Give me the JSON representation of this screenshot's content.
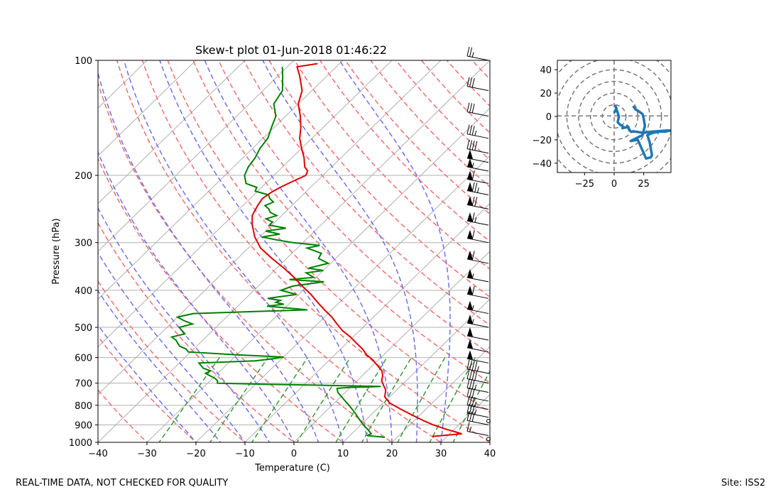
{
  "footer": {
    "left": "REAL-TIME DATA, NOT CHECKED FOR QUALITY",
    "right": "Site: ISS2"
  },
  "colors": {
    "temperature": "#e00000",
    "dewpoint": "#008000",
    "dry_adiabat": "#f07070",
    "moist_adiabat": "#7070f0",
    "mixing_ratio": "#3a9a3a",
    "isotherm": "#b0b0b0",
    "hodograph": "#1f77b4"
  },
  "chart_data": [
    {
      "type": "skewt",
      "title": "Skew-t plot 01-Jun-2018 01:46:22",
      "xlabel": "Temperature (C)",
      "ylabel": "Pressure (hPa)",
      "xlim": [
        -40,
        40
      ],
      "ylim": [
        1000,
        100
      ],
      "x_ticks": [
        -40,
        -30,
        -20,
        -10,
        0,
        10,
        20,
        30,
        40
      ],
      "x_tick_labels": [
        "−40",
        "−30",
        "−20",
        "−10",
        "0",
        "10",
        "20",
        "30",
        "40"
      ],
      "y_ticks": [
        100,
        200,
        300,
        400,
        500,
        600,
        700,
        800,
        900,
        1000
      ],
      "y_tick_labels": [
        "100",
        "200",
        "300",
        "400",
        "500",
        "600",
        "700",
        "800",
        "900",
        "1000"
      ],
      "series": [
        {
          "name": "temperature",
          "p": [
            965,
            950,
            925,
            900,
            880,
            850,
            820,
            790,
            760,
            730,
            710,
            690,
            670,
            650,
            630,
            610,
            590,
            570,
            550,
            530,
            510,
            490,
            470,
            450,
            430,
            410,
            390,
            370,
            350,
            330,
            310,
            290,
            270,
            255,
            240,
            230,
            222,
            215,
            208,
            200,
            195,
            190,
            185,
            180,
            170,
            160,
            150,
            140,
            130,
            120,
            110,
            104,
            102
          ],
          "t": [
            27,
            32.5,
            28.5,
            24.8,
            22.2,
            18.6,
            15.0,
            11.4,
            9.0,
            7.8,
            6.4,
            5.0,
            4.2,
            3.0,
            1.0,
            -1.0,
            -3.5,
            -5.5,
            -8.0,
            -10.5,
            -13.5,
            -16.0,
            -18.5,
            -21.5,
            -24.5,
            -27.5,
            -31.0,
            -34.5,
            -38.5,
            -43.0,
            -47.5,
            -51.0,
            -54.0,
            -56.0,
            -57.0,
            -57.5,
            -57.0,
            -56.2,
            -55.0,
            -53.5,
            -54.0,
            -55.5,
            -56.5,
            -57.5,
            -60.0,
            -62.5,
            -64.5,
            -67.0,
            -70.0,
            -72.0,
            -75.5,
            -78.0,
            -74.5
          ]
        },
        {
          "name": "dewpoint",
          "p": [
            970,
            960,
            950,
            920,
            900,
            870,
            840,
            800,
            770,
            740,
            722,
            718,
            716,
            714,
            712,
            708,
            705,
            700,
            690,
            680,
            670,
            660,
            650,
            640,
            630,
            620,
            612,
            605,
            598,
            590,
            580,
            570,
            560,
            550,
            540,
            530,
            520,
            500,
            490,
            480,
            470,
            460,
            450,
            440,
            435,
            430,
            425,
            420,
            415,
            410,
            400,
            390,
            380,
            375,
            370,
            360,
            355,
            350,
            340,
            330,
            320,
            310,
            305,
            300,
            295,
            290,
            285,
            280,
            275,
            270,
            265,
            260,
            255,
            250,
            245,
            240,
            235,
            230,
            225,
            220,
            215,
            210,
            200,
            190,
            180,
            170,
            160,
            150,
            140,
            130,
            120,
            110,
            104
          ],
          "t": [
            17.5,
            13.5,
            14.0,
            12.0,
            10.5,
            8.5,
            6.5,
            3.5,
            1.0,
            -1.5,
            -2.5,
            0.0,
            4.0,
            6.0,
            1.0,
            -9.0,
            -18.0,
            -28.0,
            -28.5,
            -29.5,
            -31.0,
            -32.5,
            -32.0,
            -34.0,
            -35.0,
            -36.0,
            -25.0,
            -22.0,
            -20.0,
            -30.0,
            -40.5,
            -41.5,
            -43.5,
            -44.5,
            -45.5,
            -47.0,
            -45.0,
            -47.5,
            -45.5,
            -48.0,
            -50.0,
            -47.5,
            -25.0,
            -34.0,
            -31.0,
            -33.0,
            -32.5,
            -35.5,
            -33.0,
            -30.5,
            -34.5,
            -33.0,
            -27.5,
            -35.0,
            -30.5,
            -33.0,
            -30.0,
            -33.5,
            -30.5,
            -33.5,
            -34.0,
            -38.0,
            -36.0,
            -42.0,
            -46.0,
            -49.5,
            -46.5,
            -50.0,
            -46.5,
            -50.5,
            -50.5,
            -52.5,
            -51.0,
            -53.0,
            -54.0,
            -55.5,
            -54.5,
            -56.0,
            -57.0,
            -60.5,
            -61.0,
            -64.0,
            -66.0,
            -67.0,
            -67.5,
            -68.5,
            -69.0,
            -70.5,
            -72.0,
            -75.0,
            -76.0,
            -79.0,
            -81.0
          ]
        }
      ],
      "dry_adiabats_theta_C": [
        -30,
        -20,
        -10,
        0,
        10,
        20,
        30,
        40,
        50,
        60,
        70,
        80,
        90,
        100,
        110,
        120,
        130,
        140,
        150,
        160,
        170,
        180,
        190,
        200
      ],
      "moist_adiabats_start_T_C": [
        -20,
        -15,
        -10,
        -5,
        0,
        5,
        10,
        15,
        20,
        25,
        30
      ],
      "mixing_ratio_lines_g_per_kg": [
        0.4,
        1,
        2,
        4,
        7,
        10,
        16,
        24,
        32
      ],
      "mixing_ratio_top_hPa": 600,
      "isotherm_spacing_C": 10,
      "grid": true,
      "wind_barbs": {
        "p": [
          960,
          900,
          860,
          820,
          780,
          740,
          700,
          660,
          620,
          580,
          540,
          500,
          460,
          420,
          380,
          340,
          300,
          270,
          245,
          225,
          210,
          195,
          185,
          175,
          160,
          140,
          120,
          100
        ],
        "spd": [
          15,
          30,
          35,
          35,
          30,
          35,
          40,
          45,
          50,
          50,
          50,
          55,
          55,
          60,
          55,
          60,
          60,
          65,
          70,
          75,
          60,
          55,
          50,
          40,
          35,
          30,
          30,
          25
        ]
      }
    },
    {
      "type": "hodograph",
      "xlim": [
        -48,
        48
      ],
      "ylim": [
        -48,
        48
      ],
      "x_ticks": [
        -25,
        0,
        25
      ],
      "x_tick_labels": [
        "−25",
        "0",
        "25"
      ],
      "y_ticks": [
        -40,
        -20,
        0,
        20,
        40
      ],
      "y_tick_labels": [
        "−40",
        "−20",
        "0",
        "20",
        "40"
      ],
      "ring_spacing": 10,
      "u": [
        0,
        2,
        1,
        4,
        3,
        5,
        8,
        7,
        12,
        13,
        11,
        14,
        18,
        24,
        32,
        45,
        48,
        43,
        38,
        33,
        28,
        30,
        31,
        32,
        31,
        27,
        20,
        14,
        18,
        16,
        20,
        24,
        26,
        25,
        24,
        20,
        18,
        16
      ],
      "v": [
        3,
        7,
        9,
        0,
        -5,
        -7,
        -9,
        -10,
        -9,
        -12,
        -8,
        -13,
        -13,
        -14,
        -13,
        -12,
        -12,
        -13,
        -13,
        -14,
        -16,
        -22,
        -28,
        -33,
        -35,
        -36,
        -20,
        -21,
        -19,
        -20,
        -18,
        -16,
        -8,
        -2,
        2,
        5,
        6,
        9
      ]
    }
  ]
}
